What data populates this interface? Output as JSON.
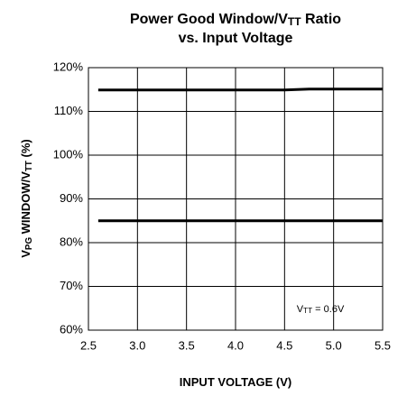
{
  "chart_data": {
    "type": "line",
    "title": [
      [
        {
          "text": "Power Good Window/V"
        },
        {
          "text": "TT",
          "sub": true
        },
        {
          "text": " Ratio"
        }
      ],
      [
        {
          "text": "vs. Input Voltage"
        }
      ]
    ],
    "x_label": [
      {
        "text": "INPUT VOLTAGE (V)"
      }
    ],
    "y_label": [
      {
        "text": "V"
      },
      {
        "text": "PG",
        "sub": true
      },
      {
        "text": " WINDOW/V"
      },
      {
        "text": "TT",
        "sub": true
      },
      {
        "text": " (%)"
      }
    ],
    "annotation": [
      {
        "text": "V"
      },
      {
        "text": "TT",
        "sub": true
      },
      {
        "text": " = 0.6V"
      }
    ],
    "x": [
      2.6,
      3,
      3.5,
      4,
      4.5,
      4.75,
      5,
      5.5
    ],
    "series": [
      {
        "color": "#000000",
        "values": [
          114.9,
          114.9,
          114.9,
          114.9,
          114.9,
          115.1,
          115.1,
          115.1
        ]
      },
      {
        "color": "#000000",
        "values": [
          85,
          85,
          85,
          85,
          85,
          85,
          85,
          85
        ]
      }
    ],
    "xlim": [
      2.5,
      5.5
    ],
    "xticks": [
      {
        "value": 2.5,
        "label": "2.5"
      },
      {
        "value": 3,
        "label": "3.0"
      },
      {
        "value": 3.5,
        "label": "3.5"
      },
      {
        "value": 4,
        "label": "4.0"
      },
      {
        "value": 4.5,
        "label": "4.5"
      },
      {
        "value": 5,
        "label": "5.0"
      },
      {
        "value": 5.5,
        "label": "5.5"
      }
    ],
    "ylim": [
      60,
      120
    ],
    "yticks": [
      {
        "value": 60,
        "label": "60%"
      },
      {
        "value": 70,
        "label": "70%"
      },
      {
        "value": 80,
        "label": "80%"
      },
      {
        "value": 90,
        "label": "90%"
      },
      {
        "value": 100,
        "label": "100%"
      },
      {
        "value": 110,
        "label": "110%"
      },
      {
        "value": 120,
        "label": "120%"
      }
    ],
    "grid": true
  }
}
